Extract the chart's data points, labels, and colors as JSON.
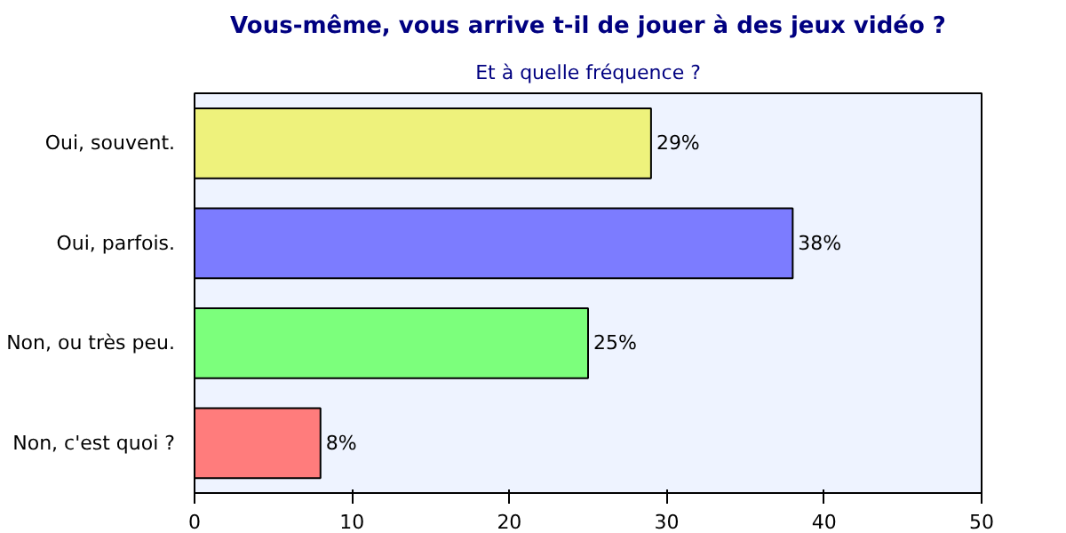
{
  "chart_data": {
    "type": "bar",
    "orientation": "horizontal",
    "title": "Vous-même, vous arrive t-il de jouer à des jeux vidéo ?",
    "subtitle": "Et à quelle fréquence ?",
    "categories": [
      "Oui, souvent.",
      "Oui, parfois.",
      "Non, ou très peu.",
      "Non, c'est quoi ?"
    ],
    "values": [
      29,
      38,
      25,
      8
    ],
    "colors": [
      "#eef27c",
      "#7c7cff",
      "#7cff7c",
      "#ff7c7c"
    ],
    "value_labels": [
      "29%",
      "38%",
      "25%",
      "8%"
    ],
    "xlim": [
      0,
      50
    ],
    "xticks": [
      0,
      10,
      20,
      30,
      40,
      50
    ],
    "grid": false
  }
}
